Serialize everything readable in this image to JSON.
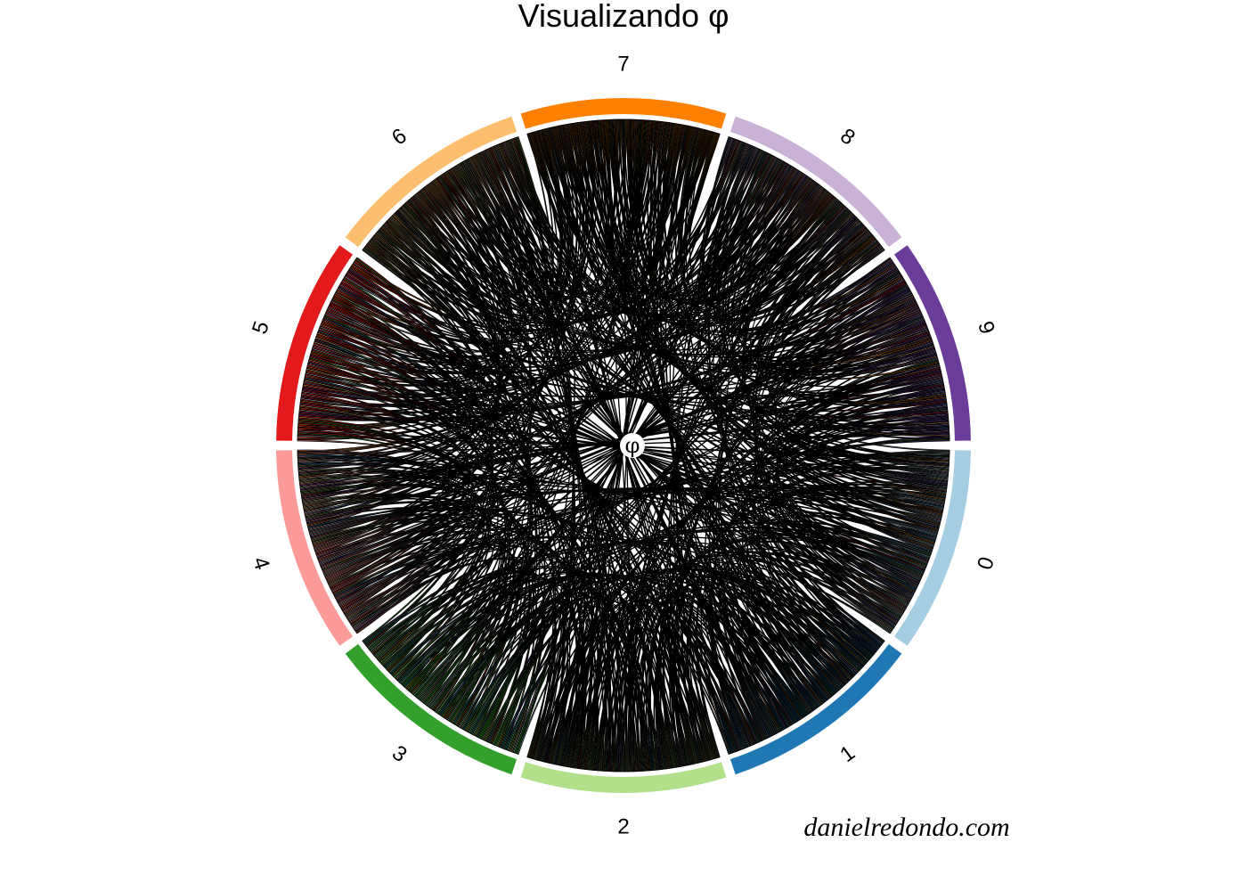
{
  "title": "Visualizando φ",
  "center_symbol": "φ",
  "credit": "danielredondo.com",
  "segments": [
    {
      "label": "0",
      "color": "#A6CEE3"
    },
    {
      "label": "1",
      "color": "#1F78B4"
    },
    {
      "label": "2",
      "color": "#B2DF8A"
    },
    {
      "label": "3",
      "color": "#33A02C"
    },
    {
      "label": "4",
      "color": "#FB9A99"
    },
    {
      "label": "5",
      "color": "#E31A1C"
    },
    {
      "label": "6",
      "color": "#FDBF6F"
    },
    {
      "label": "7",
      "color": "#FF7F00"
    },
    {
      "label": "8",
      "color": "#CAB2D6"
    },
    {
      "label": "9",
      "color": "#6A3D9A"
    }
  ],
  "ribbon_outline_color": "#000000"
}
